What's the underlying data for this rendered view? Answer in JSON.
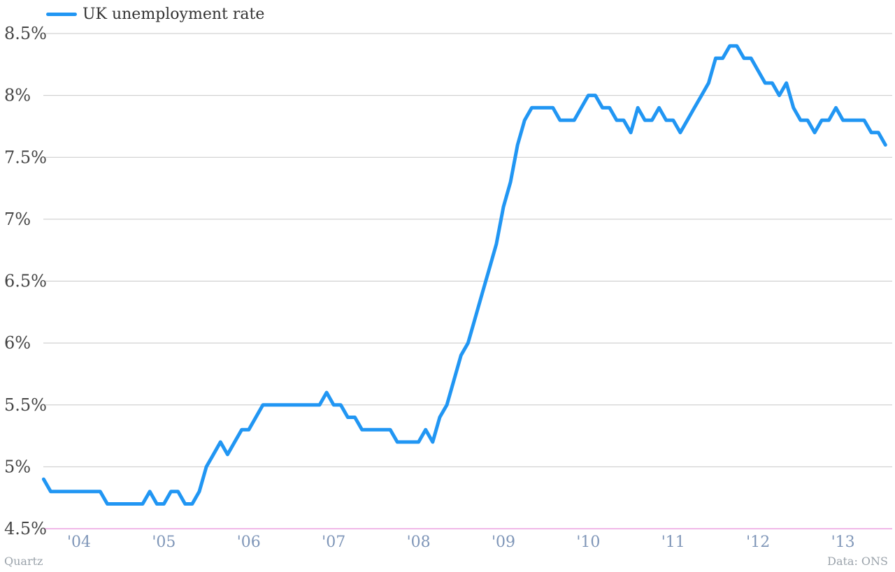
{
  "legend": {
    "label": "UK unemployment rate"
  },
  "footer": {
    "source_left": "Quartz",
    "source_right": "Data: ONS"
  },
  "colors": {
    "series": "#2196f3",
    "grid": "#c8c8c8",
    "baseline": "#e070d0",
    "ytick": "#444444",
    "xtick": "#7f96b8"
  },
  "chart_data": {
    "type": "line",
    "title": "",
    "xlabel": "",
    "ylabel": "",
    "ylim": [
      4.5,
      8.5
    ],
    "yticks": [
      4.5,
      5,
      5.5,
      6,
      6.5,
      7,
      7.5,
      8,
      8.5
    ],
    "ytick_labels": [
      "4.5%",
      "5%",
      "5.5%",
      "6%",
      "6.5%",
      "7%",
      "7.5%",
      "8%",
      "8.5%"
    ],
    "xticks": [
      2004,
      2005,
      2006,
      2007,
      2008,
      2009,
      2010,
      2011,
      2012,
      2013
    ],
    "xtick_labels": [
      "'04",
      "'05",
      "'06",
      "'07",
      "'08",
      "'09",
      "'10",
      "'11",
      "'12",
      "'13"
    ],
    "xlim": [
      2003.58,
      2013.58
    ],
    "grid": true,
    "legend_position": "top-left",
    "series": [
      {
        "name": "UK unemployment rate",
        "x_start": "2003-08",
        "frequency": "monthly",
        "values": [
          4.9,
          4.8,
          4.8,
          4.8,
          4.8,
          4.8,
          4.8,
          4.8,
          4.8,
          4.7,
          4.7,
          4.7,
          4.7,
          4.7,
          4.7,
          4.8,
          4.7,
          4.7,
          4.8,
          4.8,
          4.7,
          4.7,
          4.8,
          5.0,
          5.1,
          5.2,
          5.1,
          5.2,
          5.3,
          5.3,
          5.4,
          5.5,
          5.5,
          5.5,
          5.5,
          5.5,
          5.5,
          5.5,
          5.5,
          5.5,
          5.6,
          5.5,
          5.5,
          5.4,
          5.4,
          5.3,
          5.3,
          5.3,
          5.3,
          5.3,
          5.2,
          5.2,
          5.2,
          5.2,
          5.3,
          5.2,
          5.4,
          5.5,
          5.7,
          5.9,
          6.0,
          6.2,
          6.4,
          6.6,
          6.8,
          7.1,
          7.3,
          7.6,
          7.8,
          7.9,
          7.9,
          7.9,
          7.9,
          7.8,
          7.8,
          7.8,
          7.9,
          8.0,
          8.0,
          7.9,
          7.9,
          7.8,
          7.8,
          7.7,
          7.9,
          7.8,
          7.8,
          7.9,
          7.8,
          7.8,
          7.7,
          7.8,
          7.9,
          8.0,
          8.1,
          8.3,
          8.3,
          8.4,
          8.4,
          8.3,
          8.3,
          8.2,
          8.1,
          8.1,
          8.0,
          8.1,
          7.9,
          7.8,
          7.8,
          7.7,
          7.8,
          7.8,
          7.9,
          7.8,
          7.8,
          7.8,
          7.8,
          7.7,
          7.7,
          7.6
        ]
      }
    ]
  }
}
